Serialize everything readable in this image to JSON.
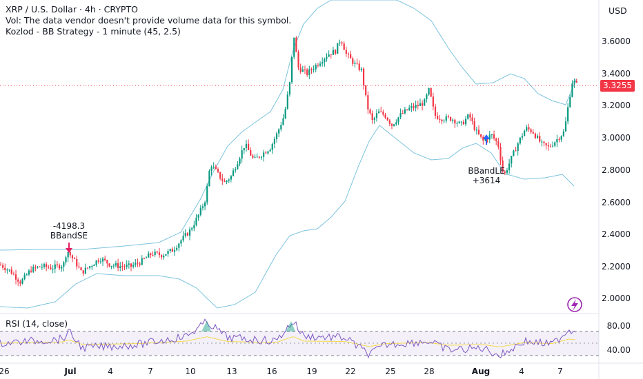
{
  "header": {
    "symbol_line": "XRP / U.S. Dollar · 4h · CRYPTO",
    "volume_note": "Vol: The data vendor doesn't provide volume data for this symbol.",
    "strategy_line": "Kozlod - BB Strategy - 1 minute (45, 2.5)"
  },
  "currency": "USD",
  "last_price": "3.3255",
  "price_axis": [
    "3.6000",
    "3.4000",
    "3.2000",
    "3.0000",
    "2.8000",
    "2.6000",
    "2.4000",
    "2.2000",
    "2.0000"
  ],
  "rsi": {
    "title": "RSI (14, close)",
    "axis": [
      "80.00",
      "40.00"
    ]
  },
  "time_axis": [
    {
      "label": "26",
      "bold": false
    },
    {
      "label": "Jul",
      "bold": true
    },
    {
      "label": "4",
      "bold": false
    },
    {
      "label": "7",
      "bold": false
    },
    {
      "label": "10",
      "bold": false
    },
    {
      "label": "13",
      "bold": false
    },
    {
      "label": "16",
      "bold": false
    },
    {
      "label": "19",
      "bold": false
    },
    {
      "label": "22",
      "bold": false
    },
    {
      "label": "25",
      "bold": false
    },
    {
      "label": "28",
      "bold": false
    },
    {
      "label": "Aug",
      "bold": true
    },
    {
      "label": "4",
      "bold": false
    },
    {
      "label": "7",
      "bold": false
    }
  ],
  "annotations": {
    "short_value": "-4198.3",
    "short_label": "BBandSE",
    "long_label": "BBandLE",
    "long_value": "+3614"
  },
  "colors": {
    "up": "#089981",
    "down": "#f23645",
    "band": "#7cc3dd",
    "rsi_line": "#7e57c2",
    "rsi_ma": "#f5d94a",
    "entry_short": "#e91e63",
    "entry_long": "#2962ff"
  },
  "icons": [
    "lightning-icon"
  ]
}
